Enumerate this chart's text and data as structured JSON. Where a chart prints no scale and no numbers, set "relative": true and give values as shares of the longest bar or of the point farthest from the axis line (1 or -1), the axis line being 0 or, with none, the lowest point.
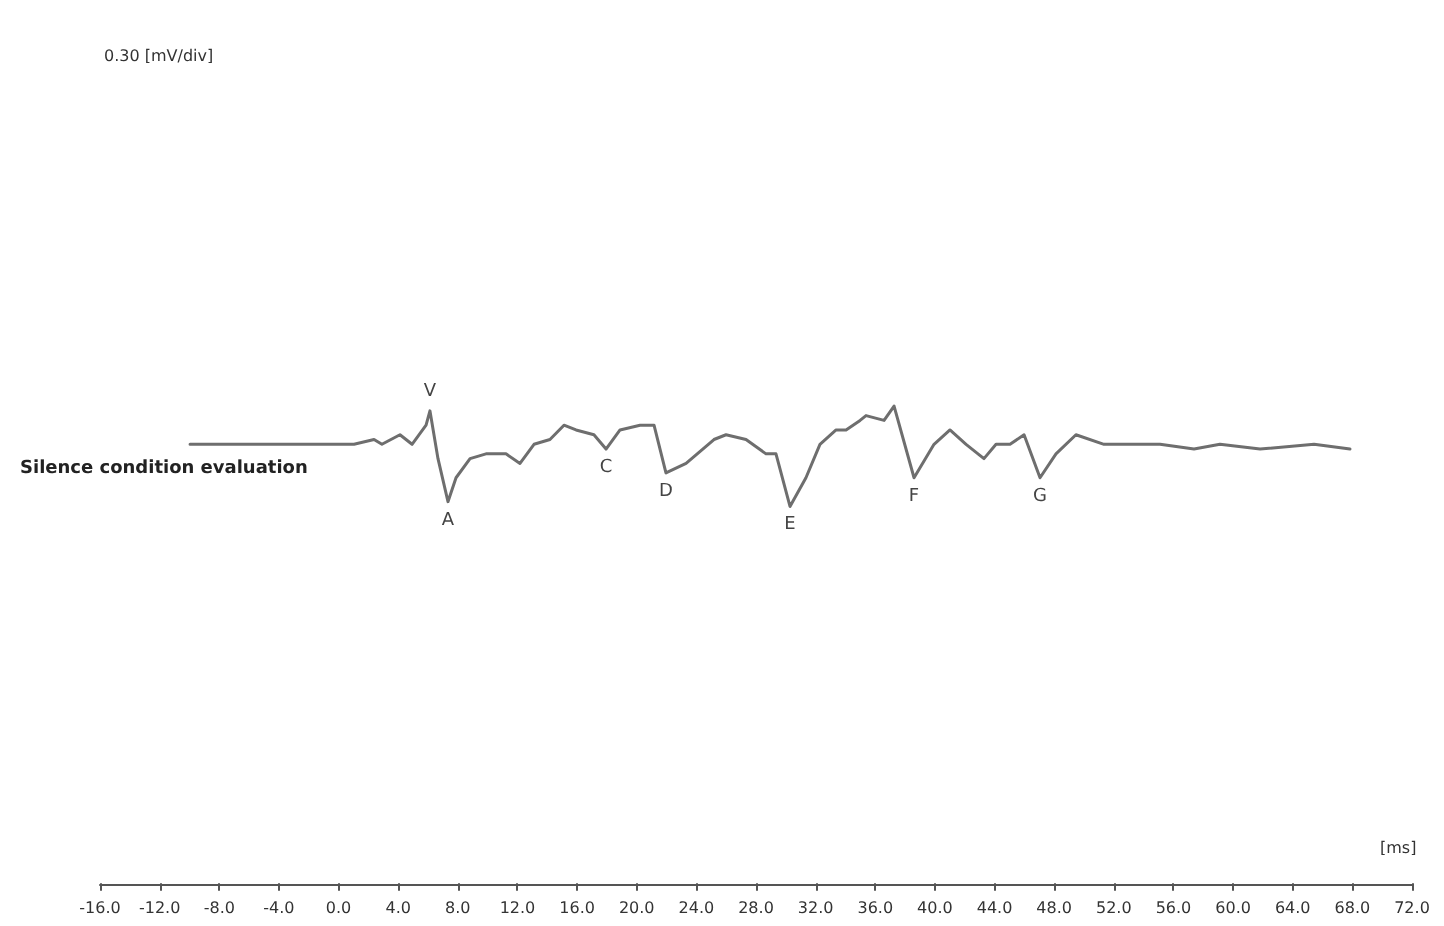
{
  "chart_data": {
    "type": "line",
    "relative": true,
    "xlabel": "[ms]",
    "xlim": [
      -16,
      72
    ],
    "xticks": [
      {
        "value": -16,
        "label": "-16.0"
      },
      {
        "value": -12,
        "label": "-12.0"
      },
      {
        "value": -8,
        "label": "-8.0"
      },
      {
        "value": -4,
        "label": "-4.0"
      },
      {
        "value": 0,
        "label": "0.0"
      },
      {
        "value": 4,
        "label": "4.0"
      },
      {
        "value": 8,
        "label": "8.0"
      },
      {
        "value": 12,
        "label": "12.0"
      },
      {
        "value": 16,
        "label": "16.0"
      },
      {
        "value": 20,
        "label": "20.0"
      },
      {
        "value": 24,
        "label": "24.0"
      },
      {
        "value": 28,
        "label": "28.0"
      },
      {
        "value": 32,
        "label": "32.0"
      },
      {
        "value": 36,
        "label": "36.0"
      },
      {
        "value": 40,
        "label": "40.0"
      },
      {
        "value": 44,
        "label": "44.0"
      },
      {
        "value": 48,
        "label": "48.0"
      },
      {
        "value": 52,
        "label": "52.0"
      },
      {
        "value": 56,
        "label": "56.0"
      },
      {
        "value": 60,
        "label": "60.0"
      },
      {
        "value": 64,
        "label": "64.0"
      },
      {
        "value": 68,
        "label": "68.0"
      },
      {
        "value": 72,
        "label": "72.0"
      }
    ],
    "x": [
      -9.96,
      1.04,
      2.38,
      2.91,
      4.12,
      4.93,
      5.87,
      6.13,
      6.67,
      7.34,
      7.88,
      8.82,
      9.89,
      11.23,
      12.17,
      13.11,
      14.18,
      15.12,
      15.93,
      17.13,
      17.94,
      18.88,
      20.22,
      21.16,
      21.96,
      23.31,
      25.18,
      25.99,
      27.33,
      28.67,
      29.34,
      30.28,
      31.35,
      32.29,
      33.37,
      34.04,
      34.98,
      35.38,
      36.59,
      37.26,
      38.6,
      39.94,
      41.01,
      42.09,
      43.29,
      44.1,
      45.04,
      45.98,
      47.05,
      48.12,
      49.46,
      51.34,
      55.1,
      57.38,
      59.12,
      61.81,
      65.43,
      67.84
    ],
    "series": [
      {
        "color": "#6e6e6e",
        "values": [
          0.92,
          0.92,
          0.93,
          0.92,
          0.94,
          0.92,
          0.96,
          0.99,
          0.89,
          0.8,
          0.85,
          0.89,
          0.9,
          0.9,
          0.88,
          0.92,
          0.93,
          0.96,
          0.95,
          0.94,
          0.91,
          0.95,
          0.96,
          0.96,
          0.86,
          0.88,
          0.93,
          0.94,
          0.93,
          0.9,
          0.9,
          0.79,
          0.85,
          0.92,
          0.95,
          0.95,
          0.97,
          0.98,
          0.97,
          1,
          0.85,
          0.92,
          0.95,
          0.92,
          0.89,
          0.92,
          0.92,
          0.94,
          0.85,
          0.9,
          0.94,
          0.92,
          0.92,
          0.91,
          0.92,
          0.91,
          0.92,
          0.91
        ]
      }
    ],
    "annotations": [
      "0.30 [mV/div]",
      "Silence condition evaluation",
      {
        "text": "V",
        "x": 6.13,
        "y": 0.99
      },
      {
        "text": "A",
        "x": 7.34,
        "y": 0.8
      },
      {
        "text": "C",
        "x": 17.94,
        "y": 0.91
      },
      {
        "text": "D",
        "x": 21.96,
        "y": 0.86
      },
      {
        "text": "E",
        "x": 30.28,
        "y": 0.79
      },
      {
        "text": "F",
        "x": 38.6,
        "y": 0.85
      },
      {
        "text": "G",
        "x": 47.05,
        "y": 0.85
      }
    ],
    "grid": false,
    "marker": "none",
    "line_style": "solid"
  }
}
